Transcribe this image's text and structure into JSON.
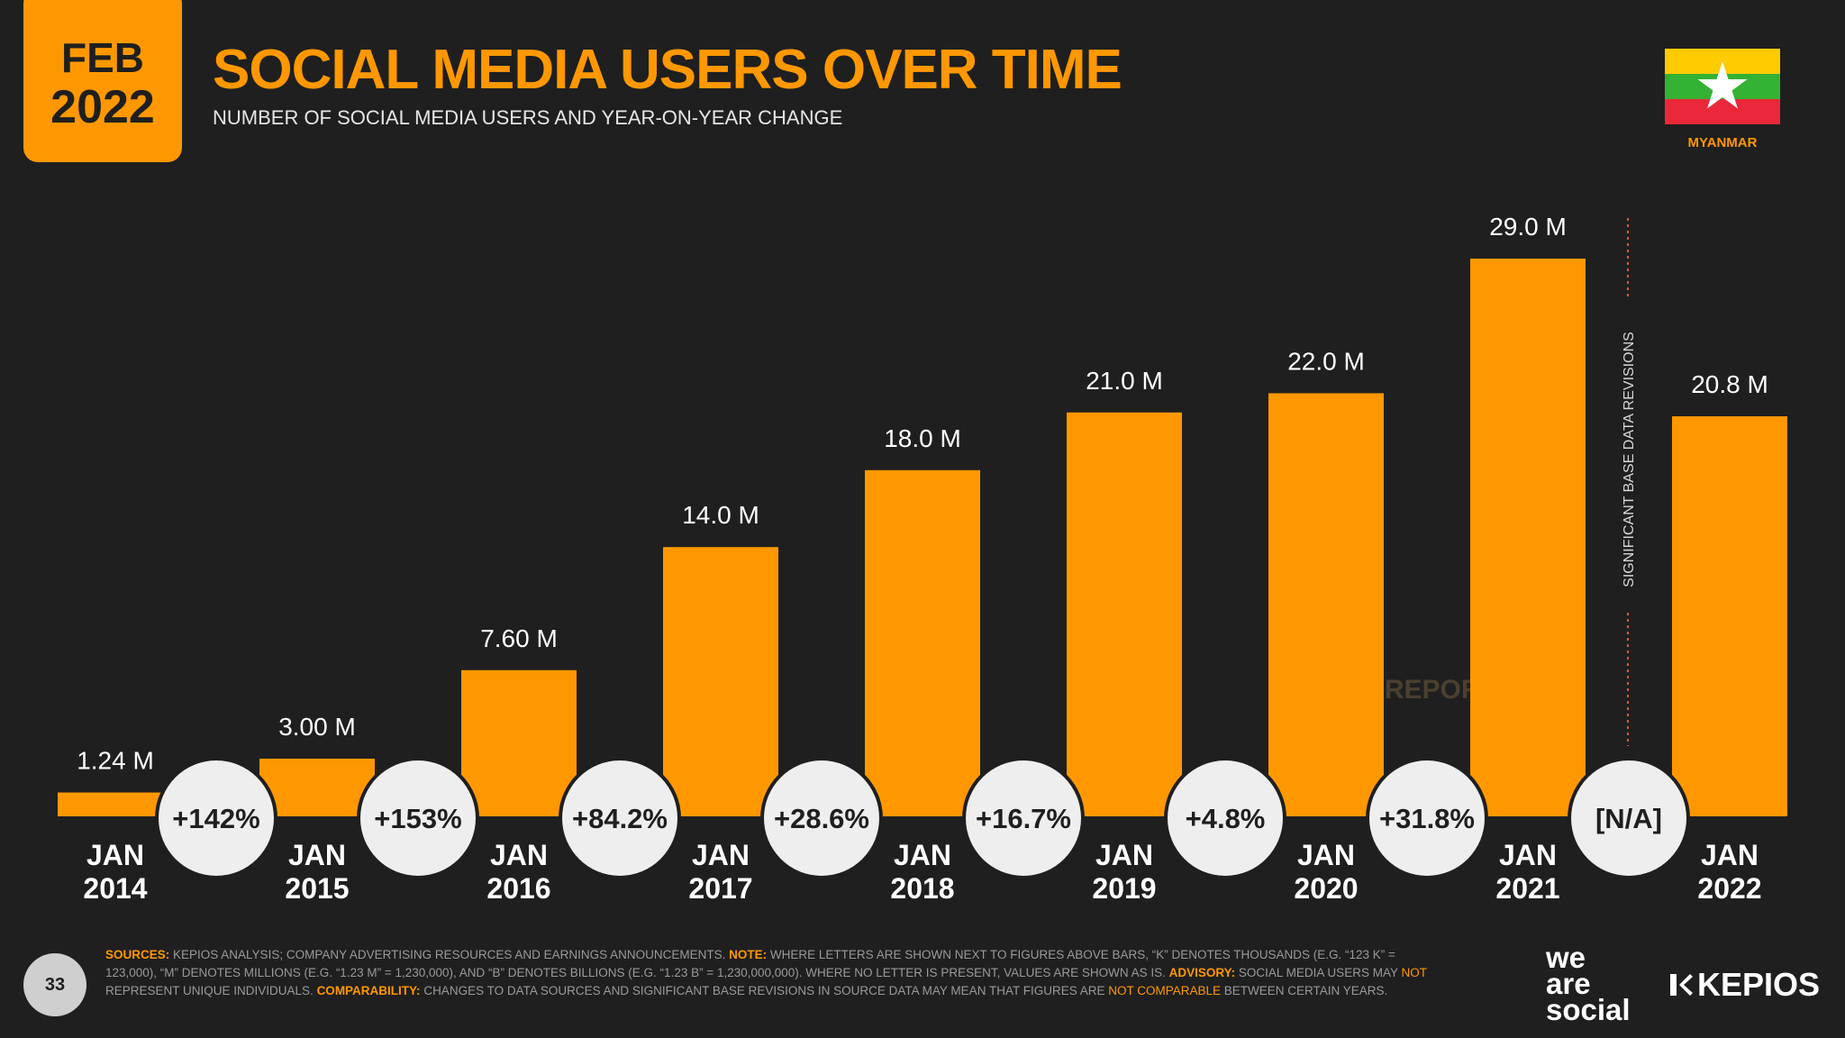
{
  "header": {
    "month": "FEB",
    "year": "2022",
    "title": "SOCIAL MEDIA USERS OVER TIME",
    "subtitle": "NUMBER OF SOCIAL MEDIA USERS AND YEAR-ON-YEAR CHANGE",
    "country": "MYANMAR"
  },
  "colors": {
    "accent": "#ff9800",
    "background": "#1f1f1f",
    "circle": "#eeeeee",
    "flag_yellow": "#fecb00",
    "flag_green": "#34b233",
    "flag_red": "#ea2839"
  },
  "chart_data": {
    "type": "bar",
    "title": "SOCIAL MEDIA USERS OVER TIME",
    "categories": [
      [
        "JAN",
        "2014"
      ],
      [
        "JAN",
        "2015"
      ],
      [
        "JAN",
        "2016"
      ],
      [
        "JAN",
        "2017"
      ],
      [
        "JAN",
        "2018"
      ],
      [
        "JAN",
        "2019"
      ],
      [
        "JAN",
        "2020"
      ],
      [
        "JAN",
        "2021"
      ],
      [
        "JAN",
        "2022"
      ]
    ],
    "values": [
      1.24,
      3.0,
      7.6,
      14.0,
      18.0,
      21.0,
      22.0,
      29.0,
      20.8
    ],
    "value_labels": [
      "1.24 M",
      "3.00 M",
      "7.60 M",
      "14.0 M",
      "18.0 M",
      "21.0 M",
      "22.0 M",
      "29.0 M",
      "20.8 M"
    ],
    "changes": [
      "+142%",
      "+153%",
      "+84.2%",
      "+28.6%",
      "+16.7%",
      "+4.8%",
      "+31.8%",
      "[N/A]"
    ],
    "unit": "M",
    "ylim": [
      0,
      29.0
    ],
    "separator_label": "SIGNIFICANT BASE DATA REVISIONS",
    "watermark": "DATAREPORTAL",
    "grid": false,
    "legend": "none"
  },
  "footer": {
    "page_number": "33",
    "sources_parts": [
      {
        "t": "SOURCES:",
        "c": "hl"
      },
      {
        "t": " KEPIOS ANALYSIS; COMPANY ADVERTISING RESOURCES AND EARNINGS ANNOUNCEMENTS. ",
        "c": ""
      },
      {
        "t": "NOTE:",
        "c": "hl"
      },
      {
        "t": " WHERE LETTERS ARE SHOWN NEXT TO FIGURES ABOVE BARS, “K” DENOTES THOUSANDS (E.G. “123 K” = 123,000), “M” DENOTES MILLIONS (E.G. “1.23 M” = 1,230,000), AND “B” DENOTES BILLIONS (E.G. “1.23 B” = 1,230,000,000). WHERE NO LETTER IS PRESENT, VALUES ARE SHOWN AS IS. ",
        "c": ""
      },
      {
        "t": "ADVISORY:",
        "c": "hl"
      },
      {
        "t": " SOCIAL MEDIA USERS MAY ",
        "c": ""
      },
      {
        "t": "NOT",
        "c": "hn"
      },
      {
        "t": " REPRESENT UNIQUE INDIVIDUALS. ",
        "c": ""
      },
      {
        "t": "COMPARABILITY:",
        "c": "hl"
      },
      {
        "t": " CHANGES TO DATA SOURCES AND SIGNIFICANT BASE REVISIONS IN SOURCE DATA MAY MEAN THAT FIGURES ARE ",
        "c": ""
      },
      {
        "t": "NOT COMPARABLE",
        "c": "hn"
      },
      {
        "t": " BETWEEN CERTAIN YEARS.",
        "c": ""
      }
    ],
    "brand_we": "we",
    "brand_are": "are",
    "brand_social": "social",
    "brand_kepios": "KEPIOS"
  }
}
